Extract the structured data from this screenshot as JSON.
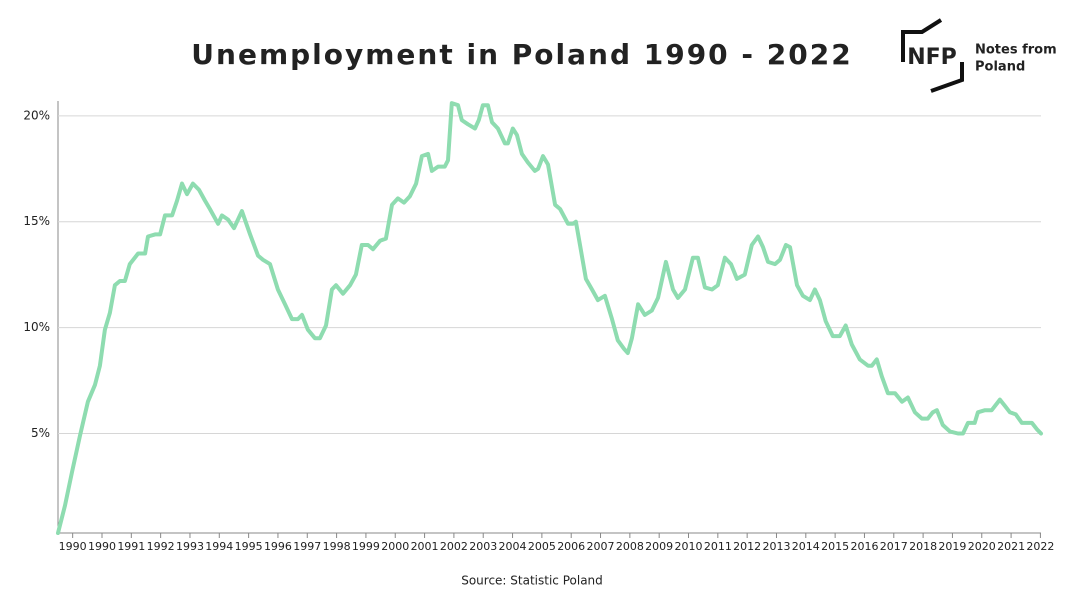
{
  "chart_data": {
    "type": "line",
    "title": "Unemployment in Poland 1990 - 2022",
    "source": "Source: Statistic Poland",
    "logo": {
      "mark": "NFP",
      "line1": "Notes from",
      "line2": "Poland"
    },
    "xlim": [
      1990,
      2023.52
    ],
    "xticks": [
      {
        "value": 1990.5,
        "label": "1990"
      },
      {
        "value": 1991.5,
        "label": "1990"
      },
      {
        "value": 1992.5,
        "label": "1991"
      },
      {
        "value": 1993.5,
        "label": "1992"
      },
      {
        "value": 1994.5,
        "label": "1993"
      },
      {
        "value": 1995.5,
        "label": "1994"
      },
      {
        "value": 1996.5,
        "label": "1995"
      },
      {
        "value": 1997.5,
        "label": "1996"
      },
      {
        "value": 1998.5,
        "label": "1997"
      },
      {
        "value": 1999.5,
        "label": "1998"
      },
      {
        "value": 2000.5,
        "label": "1999"
      },
      {
        "value": 2001.5,
        "label": "2000"
      },
      {
        "value": 2002.5,
        "label": "2001"
      },
      {
        "value": 2003.5,
        "label": "2002"
      },
      {
        "value": 2004.5,
        "label": "2003"
      },
      {
        "value": 2005.5,
        "label": "2004"
      },
      {
        "value": 2006.5,
        "label": "2005"
      },
      {
        "value": 2007.5,
        "label": "2006"
      },
      {
        "value": 2008.5,
        "label": "2007"
      },
      {
        "value": 2009.5,
        "label": "2008"
      },
      {
        "value": 2010.5,
        "label": "2009"
      },
      {
        "value": 2011.5,
        "label": "2010"
      },
      {
        "value": 2012.5,
        "label": "2011"
      },
      {
        "value": 2013.5,
        "label": "2012"
      },
      {
        "value": 2014.5,
        "label": "2013"
      },
      {
        "value": 2015.5,
        "label": "2014"
      },
      {
        "value": 2016.5,
        "label": "2015"
      },
      {
        "value": 2017.5,
        "label": "2016"
      },
      {
        "value": 2018.5,
        "label": "2017"
      },
      {
        "value": 2019.5,
        "label": "2018"
      },
      {
        "value": 2020.5,
        "label": "2019"
      },
      {
        "value": 2021.5,
        "label": "2020"
      },
      {
        "value": 2022.5,
        "label": "2021"
      },
      {
        "value": 2023.5,
        "label": "2022"
      }
    ],
    "ylim": [
      0.3,
      20.7
    ],
    "yticks": [
      {
        "value": 5,
        "label": "5%"
      },
      {
        "value": 10,
        "label": "10%"
      },
      {
        "value": 15,
        "label": "15%"
      },
      {
        "value": 20,
        "label": "20%"
      }
    ],
    "grid": true,
    "x": [
      1990.0,
      1990.24,
      1990.48,
      1990.75,
      1991.02,
      1991.26,
      1991.43,
      1991.6,
      1991.77,
      1991.94,
      1992.11,
      1992.28,
      1992.45,
      1992.73,
      1992.97,
      1993.07,
      1993.31,
      1993.48,
      1993.65,
      1993.89,
      1994.06,
      1994.23,
      1994.4,
      1994.6,
      1994.81,
      1995.01,
      1995.18,
      1995.46,
      1995.59,
      1995.8,
      1996.0,
      1996.27,
      1996.55,
      1996.82,
      1996.99,
      1997.23,
      1997.5,
      1997.74,
      1997.98,
      1998.18,
      1998.32,
      1998.52,
      1998.76,
      1998.93,
      1999.14,
      1999.34,
      1999.48,
      1999.72,
      1999.96,
      2000.16,
      2000.36,
      2000.57,
      2000.74,
      2000.98,
      2001.18,
      2001.39,
      2001.59,
      2001.8,
      2002.0,
      2002.21,
      2002.41,
      2002.62,
      2002.75,
      2002.96,
      2003.19,
      2003.3,
      2003.43,
      2003.64,
      2003.77,
      2003.98,
      2004.22,
      2004.35,
      2004.49,
      2004.66,
      2004.8,
      2005.0,
      2005.24,
      2005.34,
      2005.51,
      2005.65,
      2005.82,
      2006.02,
      2006.26,
      2006.37,
      2006.54,
      2006.71,
      2006.95,
      2007.12,
      2007.39,
      2007.56,
      2007.66,
      2007.8,
      2008.0,
      2008.21,
      2008.41,
      2008.65,
      2008.89,
      2009.09,
      2009.3,
      2009.43,
      2009.57,
      2009.78,
      2010.01,
      2010.25,
      2010.46,
      2010.73,
      2010.97,
      2011.14,
      2011.38,
      2011.65,
      2011.82,
      2012.06,
      2012.3,
      2012.5,
      2012.74,
      2012.95,
      2013.15,
      2013.42,
      2013.66,
      2013.87,
      2014.04,
      2014.21,
      2014.45,
      2014.62,
      2014.82,
      2014.96,
      2015.2,
      2015.4,
      2015.64,
      2015.81,
      2015.98,
      2016.18,
      2016.42,
      2016.66,
      2016.86,
      2017.07,
      2017.34,
      2017.62,
      2017.75,
      2017.92,
      2018.09,
      2018.3,
      2018.54,
      2018.78,
      2018.98,
      2019.22,
      2019.46,
      2019.66,
      2019.83,
      2019.97,
      2020.17,
      2020.41,
      2020.69,
      2020.86,
      2021.03,
      2021.26,
      2021.37,
      2021.61,
      2021.84,
      2022.12,
      2022.29,
      2022.46,
      2022.66,
      2022.87,
      2023.07,
      2023.21,
      2023.38,
      2023.52
    ],
    "series": [
      {
        "color": "#8edcb0",
        "values": [
          0.3,
          1.6,
          3.2,
          4.9,
          6.5,
          7.3,
          8.2,
          9.9,
          10.7,
          12.0,
          12.2,
          12.2,
          13.0,
          13.5,
          13.5,
          14.3,
          14.4,
          14.4,
          15.3,
          15.3,
          16.0,
          16.8,
          16.3,
          16.8,
          16.5,
          16.0,
          15.6,
          14.9,
          15.3,
          15.1,
          14.7,
          15.5,
          14.4,
          13.4,
          13.2,
          13.0,
          11.8,
          11.1,
          10.4,
          10.4,
          10.6,
          9.9,
          9.5,
          9.5,
          10.1,
          11.8,
          12.0,
          11.6,
          12.0,
          12.5,
          13.9,
          13.9,
          13.7,
          14.1,
          14.2,
          15.8,
          16.1,
          15.9,
          16.2,
          16.8,
          18.1,
          18.2,
          17.4,
          17.6,
          17.6,
          17.9,
          20.6,
          20.5,
          19.8,
          19.6,
          19.4,
          19.8,
          20.5,
          20.5,
          19.7,
          19.4,
          18.7,
          18.7,
          19.4,
          19.1,
          18.2,
          17.8,
          17.4,
          17.5,
          18.1,
          17.7,
          15.8,
          15.6,
          14.9,
          14.9,
          15.0,
          13.9,
          12.3,
          11.8,
          11.3,
          11.5,
          10.4,
          9.4,
          9.0,
          8.8,
          9.5,
          11.1,
          10.6,
          10.8,
          11.4,
          13.1,
          11.8,
          11.4,
          11.8,
          13.3,
          13.3,
          11.9,
          11.8,
          12.0,
          13.3,
          13.0,
          12.3,
          12.5,
          13.9,
          14.3,
          13.8,
          13.1,
          13.0,
          13.2,
          13.9,
          13.8,
          12.0,
          11.5,
          11.3,
          11.8,
          11.3,
          10.3,
          9.6,
          9.6,
          10.1,
          9.2,
          8.5,
          8.2,
          8.2,
          8.5,
          7.7,
          6.9,
          6.9,
          6.5,
          6.7,
          6.0,
          5.7,
          5.7,
          6.0,
          6.1,
          5.4,
          5.1,
          5.0,
          5.0,
          5.5,
          5.5,
          6.0,
          6.1,
          6.1,
          6.6,
          6.3,
          6.0,
          5.9,
          5.5,
          5.5,
          5.5,
          5.2,
          5.0
        ]
      }
    ]
  }
}
